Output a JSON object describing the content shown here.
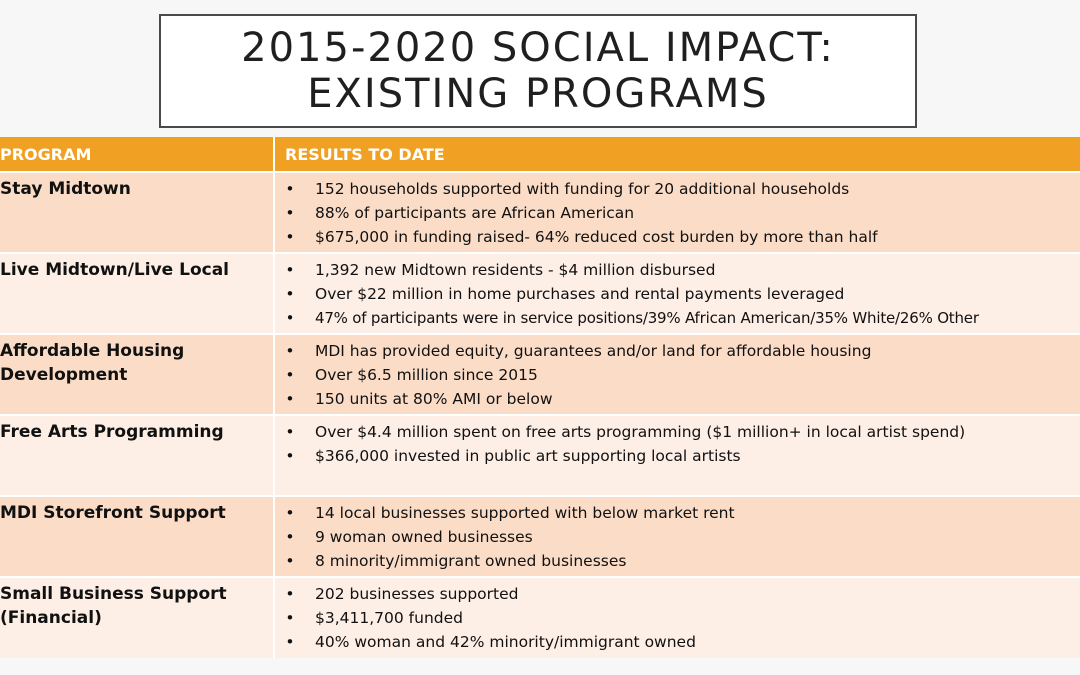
{
  "title": {
    "line1": "2015-2020 SOCIAL IMPACT:",
    "line2": "EXISTING PROGRAMS"
  },
  "table": {
    "headers": {
      "program": "PROGRAM",
      "results": "RESULTS TO DATE"
    },
    "bullet_glyph": "•",
    "rows": [
      {
        "program": "Stay Midtown",
        "results": [
          "152 households supported with funding for 20 additional households",
          "88% of participants are African American",
          "$675,000 in funding raised- 64% reduced cost burden by more than half"
        ]
      },
      {
        "program": "Live Midtown/Live Local",
        "results": [
          "1,392 new Midtown residents - $4 million disbursed",
          "Over $22 million in home purchases and rental payments leveraged",
          "47% of participants were in service positions/39% African American/35% White/26% Other"
        ]
      },
      {
        "program": "Affordable Housing Development",
        "results": [
          "MDI has provided equity, guarantees and/or land for affordable housing",
          "Over $6.5 million since 2015",
          "150 units at 80% AMI or below"
        ]
      },
      {
        "program": "Free Arts Programming",
        "results": [
          "Over $4.4 million spent on free arts programming ($1 million+ in local artist spend)",
          "$366,000 invested in public art supporting local artists"
        ]
      },
      {
        "program": "MDI Storefront Support",
        "results": [
          "14 local businesses supported with below market rent",
          "9 woman owned businesses",
          "8 minority/immigrant owned businesses"
        ]
      },
      {
        "program": "Small Business Support (Financial)",
        "results": [
          "202 businesses supported",
          "$3,411,700 funded",
          "40% woman and 42% minority/immigrant owned"
        ]
      }
    ]
  }
}
